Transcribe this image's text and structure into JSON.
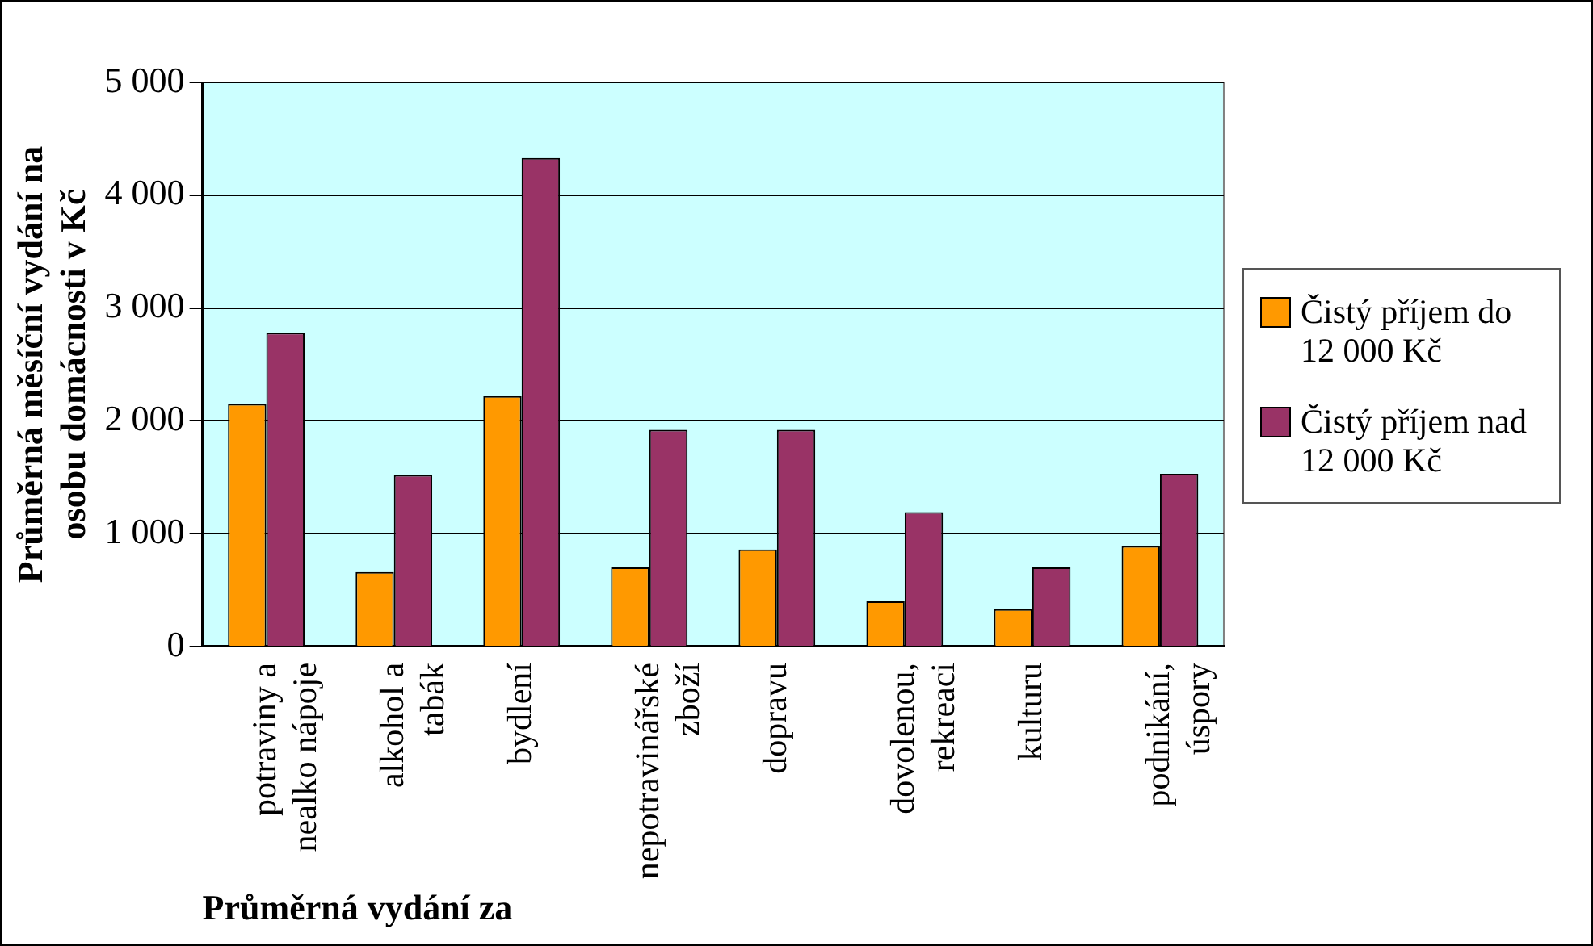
{
  "chart_data": {
    "type": "bar",
    "xlabel": "Průměrná vydání za",
    "ylabel": "Průměrná měsíční vydání na osobu domácnosti v Kč",
    "categories": [
      "potraviny a nealko nápoje",
      "alkohol a tabák",
      "bydlení",
      "nepotravinářské zboží",
      "dopravu",
      "dovolenou, rekreaci",
      "kulturu",
      "podnikání, úspory"
    ],
    "series": [
      {
        "name": "Čistý příjem do 12 000 Kč",
        "color": "#ff9900",
        "values": [
          2150,
          660,
          2220,
          700,
          860,
          400,
          330,
          890
        ]
      },
      {
        "name": "Čistý příjem nad 12 000 Kč",
        "color": "#993366",
        "values": [
          2780,
          1520,
          4330,
          1920,
          1920,
          1190,
          700,
          1530
        ]
      }
    ],
    "ylim": [
      0,
      5000
    ],
    "yticks": [
      {
        "value": 0,
        "label": "0"
      },
      {
        "value": 1000,
        "label": "1 000"
      },
      {
        "value": 2000,
        "label": "2 000"
      },
      {
        "value": 3000,
        "label": "3 000"
      },
      {
        "value": 4000,
        "label": "4 000"
      },
      {
        "value": 5000,
        "label": "5 000"
      }
    ],
    "grid": "y",
    "legend": "right"
  }
}
